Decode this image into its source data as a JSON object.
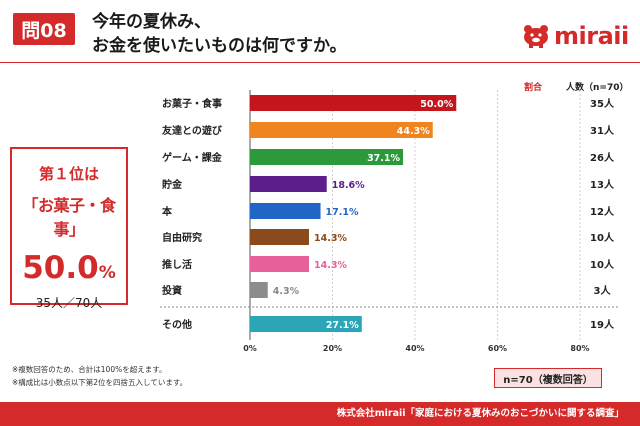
{
  "header": {
    "question_badge": "問08",
    "title_line1": "今年の夏休み、",
    "title_line2": "お金を使いたいものは何ですか。",
    "logo_text": "miraii"
  },
  "callout": {
    "rank": "第１位は",
    "item": "「お菓子・食事」",
    "percent": "50.0",
    "percent_unit": "%",
    "count": "35人／70人"
  },
  "columns": {
    "ratio": "割合",
    "people": "人数（n=70）"
  },
  "notes": {
    "note1": "※複数回答のため、合計は100%を超えます。",
    "note2": "※構成比は小数点以下第2位を四捨五入しています。",
    "sample": "n=70（複数回答）"
  },
  "footer": "株式会社miraii「家庭における夏休みのおこづかいに関する調査」",
  "chart_data": {
    "type": "bar",
    "orientation": "horizontal",
    "categories": [
      "お菓子・食事",
      "友達との遊び",
      "ゲーム・課金",
      "貯金",
      "本",
      "自由研究",
      "推し活",
      "投資",
      "その他"
    ],
    "values": [
      50.0,
      44.3,
      37.1,
      18.6,
      17.1,
      14.3,
      14.3,
      4.3,
      27.1
    ],
    "value_labels": [
      "50.0%",
      "44.3%",
      "37.1%",
      "18.6%",
      "17.1%",
      "14.3%",
      "14.3%",
      "4.3%",
      "27.1%"
    ],
    "counts": [
      "35人",
      "31人",
      "26人",
      "13人",
      "12人",
      "10人",
      "10人",
      "3人",
      "19人"
    ],
    "colors": [
      "#c4161c",
      "#f0841e",
      "#2c9a3a",
      "#5b1e8a",
      "#2166c4",
      "#8a4a1c",
      "#e8609a",
      "#8c8c8c",
      "#2aa6b8"
    ],
    "label_inside": [
      true,
      true,
      true,
      false,
      false,
      false,
      false,
      false,
      true
    ],
    "xlim": [
      0,
      80
    ],
    "xticks": [
      "0%",
      "20%",
      "40%",
      "60%",
      "80%"
    ],
    "grid": true
  }
}
